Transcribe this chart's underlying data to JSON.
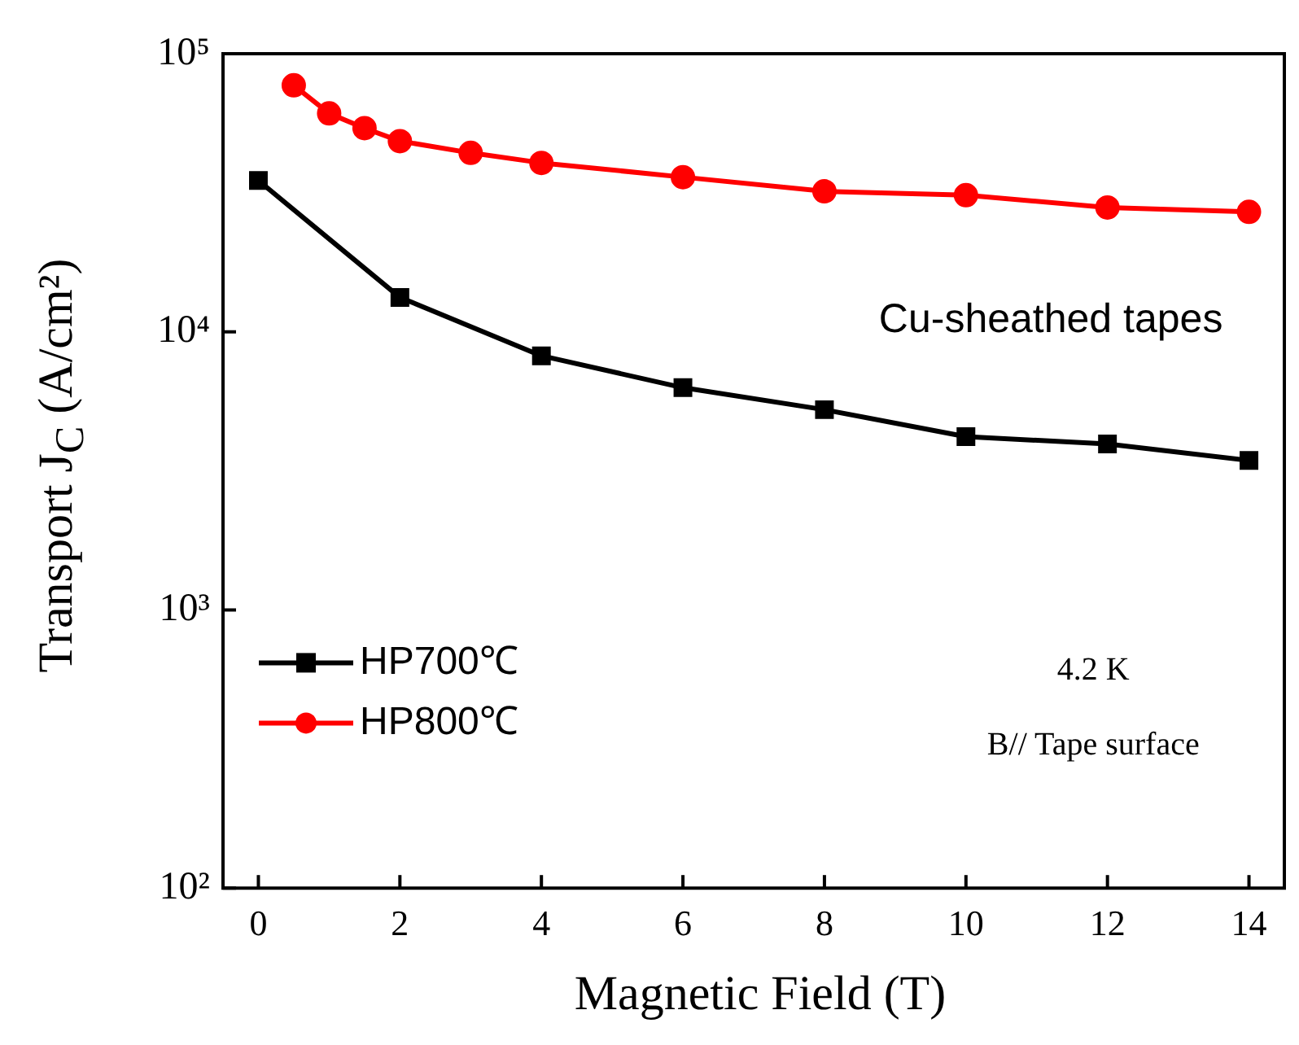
{
  "chart_data": {
    "type": "line",
    "xlabel": "Magnetic Field (T)",
    "ylabel": "Transport J$_{C}$ (A/cm²)",
    "log": "y",
    "xlim": [
      -0.5,
      14.5
    ],
    "xticks": [
      0,
      2,
      4,
      6,
      8,
      10,
      12,
      14
    ],
    "ylim": [
      100,
      100000
    ],
    "yticks": [
      {
        "value": 100,
        "label": "10²"
      },
      {
        "value": 1000,
        "label": "10³"
      },
      {
        "value": 10000,
        "label": "10⁴"
      },
      {
        "value": 100000,
        "label": "10⁵"
      }
    ],
    "grid": false,
    "legend": "left",
    "line_style": "solid",
    "series": [
      {
        "name": "HP700℃",
        "color": "#000000",
        "marker": "square",
        "x": [
          0,
          2,
          4,
          6,
          8,
          10,
          12,
          14
        ],
        "values": [
          35000,
          13300,
          8200,
          6300,
          5250,
          4200,
          3950,
          3450
        ]
      },
      {
        "name": "HP800℃",
        "color": "#ff0000",
        "marker": "circle",
        "x": [
          0.5,
          1,
          1.5,
          2,
          3,
          4,
          6,
          8,
          10,
          12,
          14
        ],
        "values": [
          77000,
          61000,
          54000,
          48500,
          44000,
          40500,
          36000,
          32000,
          31000,
          28000,
          27000
        ]
      }
    ],
    "annotations": [
      "Cu-sheathed tapes",
      "4.2 K",
      "B// Tape surface"
    ]
  }
}
